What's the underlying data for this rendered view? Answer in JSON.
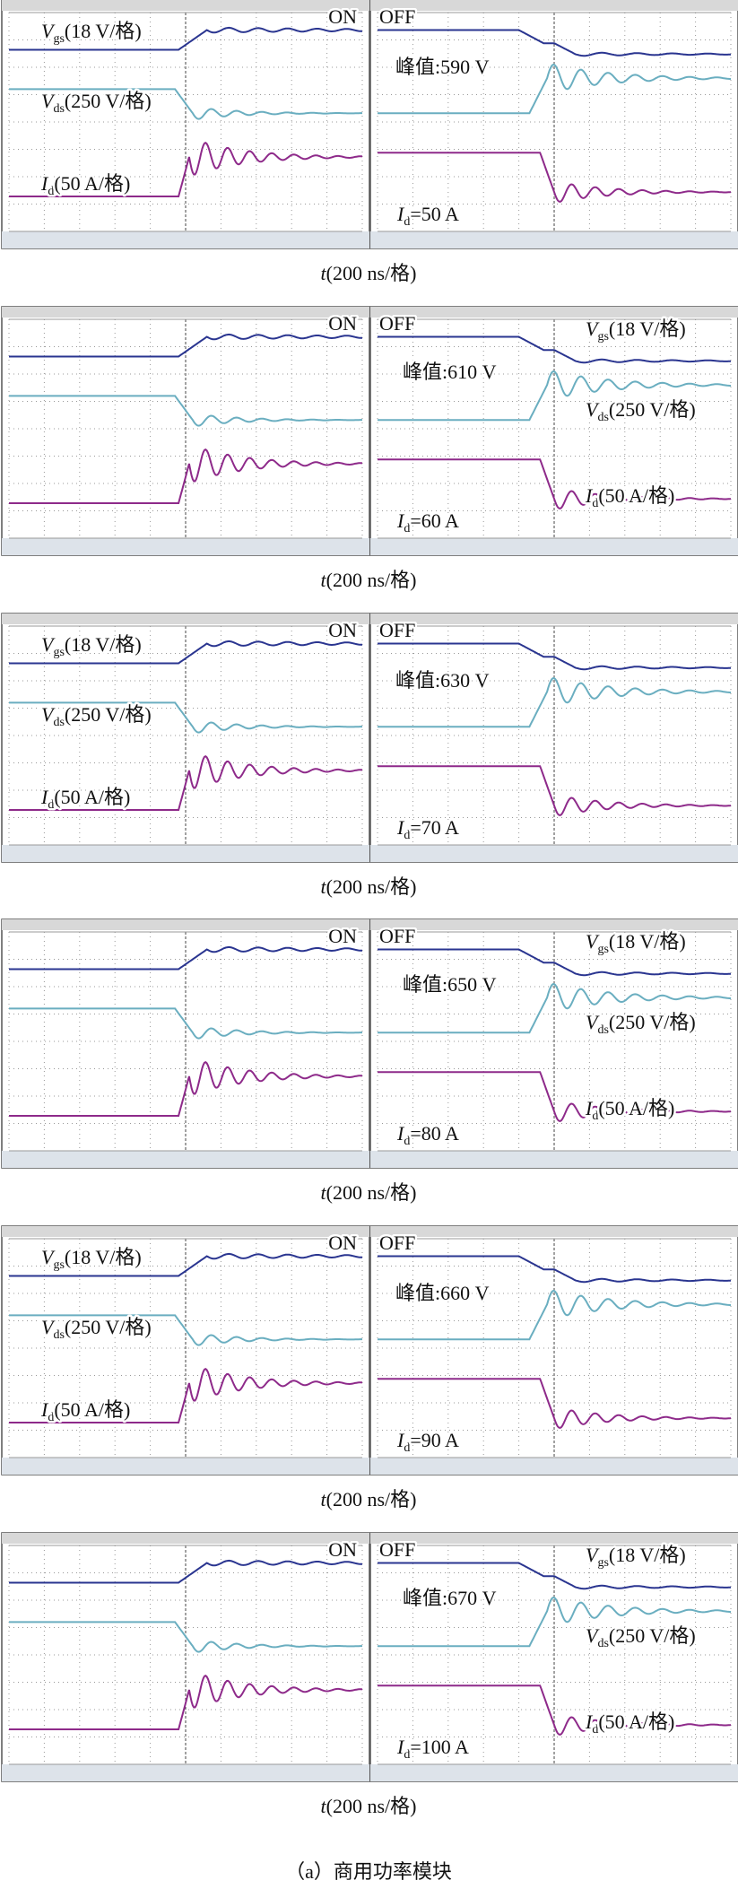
{
  "rows": [
    {
      "on": "ON",
      "off": "OFF",
      "vgs": {
        "symbol": "V",
        "sub": "gs",
        "text": "(18 V/格)"
      },
      "vds": {
        "symbol": "V",
        "sub": "ds",
        "text": "(250 V/格)"
      },
      "id": {
        "symbol": "I",
        "sub": "d",
        "text": "(50 A/格)"
      },
      "peak": "峰值:590 V",
      "current": {
        "symbol": "I",
        "sub": "d",
        "text": "=50 A"
      },
      "time": {
        "symbol": "t",
        "text": "(200 ns/格)"
      }
    },
    {
      "on": "ON",
      "off": "OFF",
      "vgs": {
        "symbol": "V",
        "sub": "gs",
        "text": "(18 V/格)"
      },
      "vds": {
        "symbol": "V",
        "sub": "ds",
        "text": "(250 V/格)"
      },
      "id": {
        "symbol": "I",
        "sub": "d",
        "text": "(50 A/格)"
      },
      "peak": "峰值:610 V",
      "current": {
        "symbol": "I",
        "sub": "d",
        "text": "=60 A"
      },
      "time": {
        "symbol": "t",
        "text": "(200 ns/格)"
      }
    },
    {
      "on": "ON",
      "off": "OFF",
      "vgs": {
        "symbol": "V",
        "sub": "gs",
        "text": "(18 V/格)"
      },
      "vds": {
        "symbol": "V",
        "sub": "ds",
        "text": "(250 V/格)"
      },
      "id": {
        "symbol": "I",
        "sub": "d",
        "text": "(50 A/格)"
      },
      "peak": "峰值:630 V",
      "current": {
        "symbol": "I",
        "sub": "d",
        "text": "=70 A"
      },
      "time": {
        "symbol": "t",
        "text": "(200 ns/格)"
      }
    },
    {
      "on": "ON",
      "off": "OFF",
      "vgs": {
        "symbol": "V",
        "sub": "gs",
        "text": "(18 V/格)"
      },
      "vds": {
        "symbol": "V",
        "sub": "ds",
        "text": "(250 V/格)"
      },
      "id": {
        "symbol": "I",
        "sub": "d",
        "text": "(50 A/格)"
      },
      "peak": "峰值:650 V",
      "current": {
        "symbol": "I",
        "sub": "d",
        "text": "=80 A"
      },
      "time": {
        "symbol": "t",
        "text": "(200 ns/格)"
      }
    },
    {
      "on": "ON",
      "off": "OFF",
      "vgs": {
        "symbol": "V",
        "sub": "gs",
        "text": "(18 V/格)"
      },
      "vds": {
        "symbol": "V",
        "sub": "ds",
        "text": "(250 V/格)"
      },
      "id": {
        "symbol": "I",
        "sub": "d",
        "text": "(50 A/格)"
      },
      "peak": "峰值:660 V",
      "current": {
        "symbol": "I",
        "sub": "d",
        "text": "=90 A"
      },
      "time": {
        "symbol": "t",
        "text": "(200 ns/格)"
      }
    },
    {
      "on": "ON",
      "off": "OFF",
      "vgs": {
        "symbol": "V",
        "sub": "gs",
        "text": "(18 V/格)"
      },
      "vds": {
        "symbol": "V",
        "sub": "ds",
        "text": "(250 V/格)"
      },
      "id": {
        "symbol": "I",
        "sub": "d",
        "text": "(50 A/格)"
      },
      "peak": "峰值:670 V",
      "current": {
        "symbol": "I",
        "sub": "d",
        "text": "=100 A"
      },
      "time": {
        "symbol": "t",
        "text": "(200 ns/格)"
      }
    }
  ],
  "caption": "（a）商用功率模块"
}
